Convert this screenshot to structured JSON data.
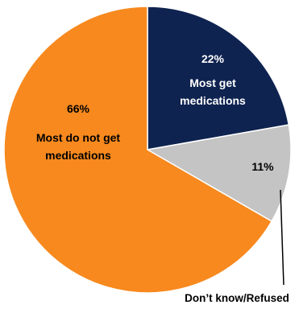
{
  "chart_data": {
    "type": "pie",
    "slices": [
      {
        "name": "Most get medications",
        "value": 22,
        "value_label": "22%",
        "line1": "Most get",
        "line2": "medications",
        "color": "#0f2350",
        "text_color": "#ffffff"
      },
      {
        "name": "Don’t know/Refused",
        "value": 11,
        "value_label": "11%",
        "line1": "",
        "line2": "",
        "color": "#c4c4c4",
        "text_color": "#000000"
      },
      {
        "name": "Most do not get medications",
        "value": 66,
        "value_label": "66%",
        "line1": "Most do not get",
        "line2": "medications",
        "color": "#f7891e",
        "text_color": "#000000"
      }
    ],
    "callout": "Don’t know/Refused",
    "start_angle": "12 o'clock",
    "direction": "clockwise"
  }
}
